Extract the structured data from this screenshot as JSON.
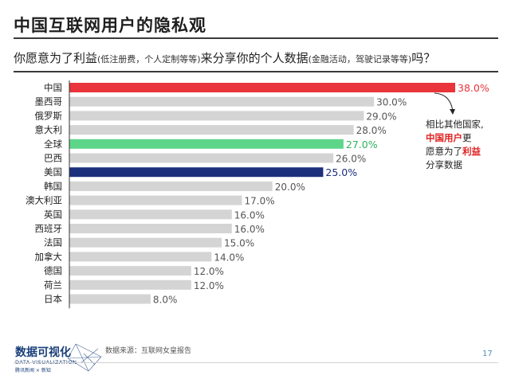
{
  "header": {
    "title": "中国互联网用户的隐私观",
    "subtitle_a": "你愿意为了利益",
    "subtitle_a_note": "(低注册费，个人定制等等)",
    "subtitle_b": "来分享你的个人数据",
    "subtitle_b_note": "(金融活动，驾驶记录等等)",
    "subtitle_c": "吗？"
  },
  "annotation": {
    "line1": "相比其他国家,",
    "line2_highlight": "中国用户",
    "line2_rest": "更",
    "line3_pre": "愿意为了",
    "line3_highlight": "利益",
    "line4": "分享数据"
  },
  "colors": {
    "china": "#e8343a",
    "global": "#5ed68a",
    "usa": "#1c2f7d",
    "default": "#d4d4d4",
    "annotation_red": "#e02020"
  },
  "footer": {
    "source": "数据来源：互联网女皇报告",
    "page": "17",
    "logo_title": "数据可视化",
    "logo_sub": "DATA VISUALIZATION",
    "logo_foot": "腾讯新闻 × 新知"
  },
  "chart_data": {
    "type": "bar",
    "orientation": "horizontal",
    "categories": [
      "中国",
      "墨西哥",
      "俄罗斯",
      "意大利",
      "全球",
      "巴西",
      "美国",
      "韩国",
      "澳大利亚",
      "英国",
      "西班牙",
      "法国",
      "加拿大",
      "德国",
      "荷兰",
      "日本"
    ],
    "values": [
      38.0,
      30.0,
      29.0,
      28.0,
      27.0,
      26.0,
      25.0,
      20.0,
      17.0,
      16.0,
      16.0,
      15.0,
      14.0,
      12.0,
      12.0,
      8.0
    ],
    "value_labels": [
      "38.0%",
      "30.0%",
      "29.0%",
      "28.0%",
      "27.0%",
      "26.0%",
      "25.0%",
      "20.0%",
      "17.0%",
      "16.0%",
      "16.0%",
      "15.0%",
      "14.0%",
      "12.0%",
      "12.0%",
      "8.0%"
    ],
    "highlight": {
      "中国": "china",
      "全球": "global",
      "美国": "usa"
    },
    "xlim": [
      0,
      38
    ],
    "grid": false,
    "unit": "%"
  }
}
